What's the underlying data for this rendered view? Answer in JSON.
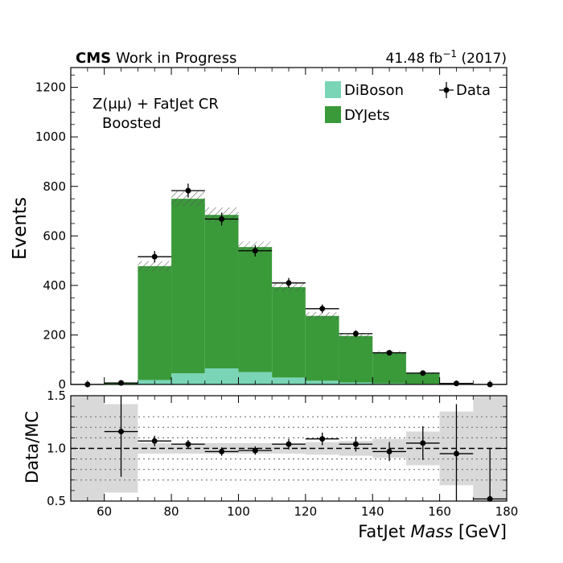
{
  "header": {
    "cms": "CMS",
    "work": "Work in Progress",
    "lumi_value": "41.48 fb",
    "lumi_exp": "−1",
    "lumi_year": " (2017)"
  },
  "region": {
    "line1": "Z(μμ) + FatJet CR",
    "line2": "Boosted"
  },
  "legend": {
    "diboson": "DiBoson",
    "dyjets": "DYJets",
    "data": "Data"
  },
  "colors": {
    "diboson": "#7ad5b6",
    "dyjets": "#3a9a3a",
    "uncert_band": "#d9d9d9"
  },
  "chart_data": [
    {
      "type": "bar",
      "stacked": true,
      "x_bin_edges": [
        50,
        60,
        70,
        80,
        90,
        100,
        110,
        120,
        130,
        140,
        150,
        160,
        170,
        180
      ],
      "series": [
        {
          "name": "DiBoson",
          "values": [
            0,
            0,
            18,
            45,
            65,
            50,
            28,
            15,
            8,
            4,
            2,
            0,
            0
          ]
        },
        {
          "name": "DYJets",
          "values": [
            0,
            5,
            460,
            705,
            620,
            505,
            365,
            262,
            188,
            124,
            43,
            5,
            0
          ]
        }
      ],
      "mc_total_uncertainty": [
        0,
        1,
        20,
        30,
        30,
        22,
        18,
        15,
        12,
        9,
        3,
        1,
        0
      ],
      "data_points": {
        "name": "Data",
        "x": [
          55,
          65,
          75,
          85,
          95,
          105,
          115,
          125,
          135,
          145,
          155,
          165,
          175
        ],
        "y": [
          0,
          6,
          516,
          783,
          668,
          540,
          410,
          306,
          205,
          128,
          46,
          4,
          0
        ],
        "yerr": [
          0,
          3,
          23,
          28,
          26,
          23,
          20,
          17,
          14,
          11,
          7,
          2,
          0
        ]
      },
      "ylabel": "Events",
      "ylim": [
        0,
        1280
      ],
      "yticks": [
        0,
        200,
        400,
        600,
        800,
        1000,
        1200
      ],
      "xlim": [
        50,
        180
      ],
      "legend_position": "top-right"
    },
    {
      "type": "scatter",
      "x": [
        55,
        65,
        75,
        85,
        95,
        105,
        115,
        125,
        135,
        145,
        155,
        165,
        175
      ],
      "ratio": [
        null,
        1.16,
        1.07,
        1.04,
        0.97,
        0.98,
        1.04,
        1.09,
        1.04,
        0.97,
        1.05,
        0.95,
        0.52
      ],
      "yerr": [
        null,
        0.43,
        0.05,
        0.04,
        0.04,
        0.04,
        0.05,
        0.06,
        0.07,
        0.09,
        0.16,
        0.47,
        0.48
      ],
      "uncert_band_halfwidth": [
        0.5,
        0.42,
        0.05,
        0.05,
        0.05,
        0.05,
        0.05,
        0.06,
        0.07,
        0.09,
        0.16,
        0.35,
        0.5
      ],
      "ylabel": "Data/MC",
      "xlabel_prefix": "FatJet ",
      "xlabel_italic": "Mass",
      "xlabel_suffix": " [GeV]",
      "ylim": [
        0.5,
        1.5
      ],
      "yticks": [
        0.5,
        1.0,
        1.5
      ],
      "xticks": [
        60,
        80,
        100,
        120,
        140,
        160,
        180
      ],
      "reference_line": 1.0,
      "dotted_gridlines": [
        0.7,
        0.8,
        0.9,
        1.1,
        1.2,
        1.3
      ]
    }
  ]
}
